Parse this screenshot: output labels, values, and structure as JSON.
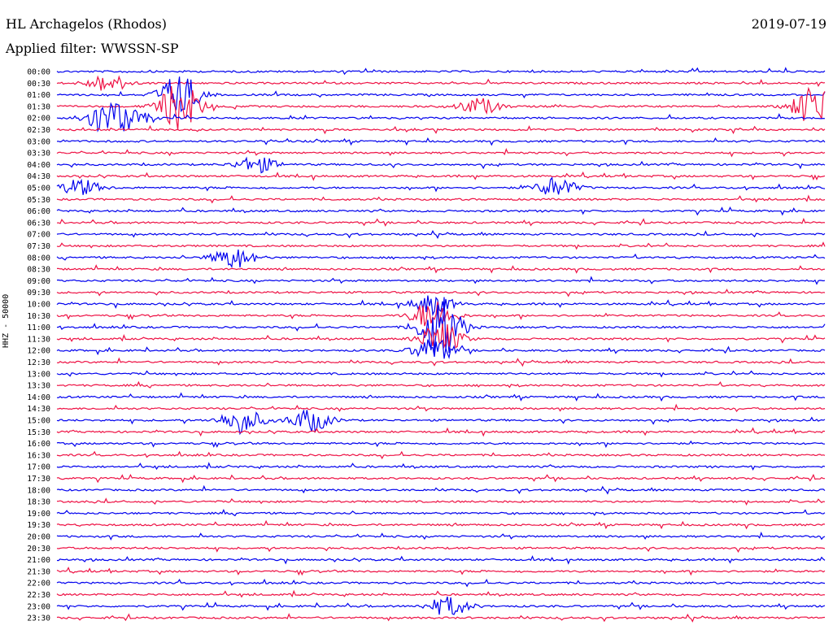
{
  "header": {
    "station": "HL Archagelos (Rhodos)",
    "date": "2019-07-19",
    "filter": "Applied filter: WWSSN-SP"
  },
  "channel_label": "HHZ - 50000",
  "colors": {
    "trace_a": "#0000ee",
    "trace_b": "#ee1144"
  },
  "chart_data": {
    "type": "line",
    "title": "HL Archagelos (Rhodos)",
    "subtitle": "Applied filter: WWSSN-SP",
    "ylabel": "HHZ - 50000",
    "categories": [
      "00:00",
      "00:30",
      "01:00",
      "01:30",
      "02:00",
      "02:30",
      "03:00",
      "03:30",
      "04:00",
      "04:30",
      "05:00",
      "05:30",
      "06:00",
      "06:30",
      "07:00",
      "07:30",
      "08:00",
      "08:30",
      "09:00",
      "09:30",
      "10:00",
      "10:30",
      "11:00",
      "11:30",
      "12:00",
      "12:30",
      "13:00",
      "13:30",
      "14:00",
      "14:30",
      "15:00",
      "15:30",
      "16:00",
      "16:30",
      "17:00",
      "17:30",
      "18:00",
      "18:30",
      "19:00",
      "19:30",
      "20:00",
      "20:30",
      "21:00",
      "21:30",
      "22:00",
      "22:30",
      "23:00",
      "23:30"
    ],
    "events": [
      {
        "row": 1,
        "pos": 0.065,
        "amp": 1.0
      },
      {
        "row": 2,
        "pos": 0.16,
        "amp": 2.6
      },
      {
        "row": 3,
        "pos": 0.16,
        "amp": 3.0
      },
      {
        "row": 3,
        "pos": 0.55,
        "amp": 1.0
      },
      {
        "row": 3,
        "pos": 0.985,
        "amp": 2.5
      },
      {
        "row": 4,
        "pos": 0.06,
        "amp": 1.6
      },
      {
        "row": 4,
        "pos": 0.09,
        "amp": 1.4
      },
      {
        "row": 8,
        "pos": 0.26,
        "amp": 1.0
      },
      {
        "row": 10,
        "pos": 0.03,
        "amp": 1.0
      },
      {
        "row": 10,
        "pos": 0.65,
        "amp": 1.2
      },
      {
        "row": 16,
        "pos": 0.23,
        "amp": 1.3
      },
      {
        "row": 20,
        "pos": 0.49,
        "amp": 1.2
      },
      {
        "row": 21,
        "pos": 0.49,
        "amp": 2.0
      },
      {
        "row": 22,
        "pos": 0.5,
        "amp": 4.0
      },
      {
        "row": 23,
        "pos": 0.5,
        "amp": 2.0
      },
      {
        "row": 24,
        "pos": 0.49,
        "amp": 1.5
      },
      {
        "row": 30,
        "pos": 0.24,
        "amp": 1.6
      },
      {
        "row": 30,
        "pos": 0.33,
        "amp": 1.4
      },
      {
        "row": 46,
        "pos": 0.51,
        "amp": 1.2
      }
    ]
  }
}
